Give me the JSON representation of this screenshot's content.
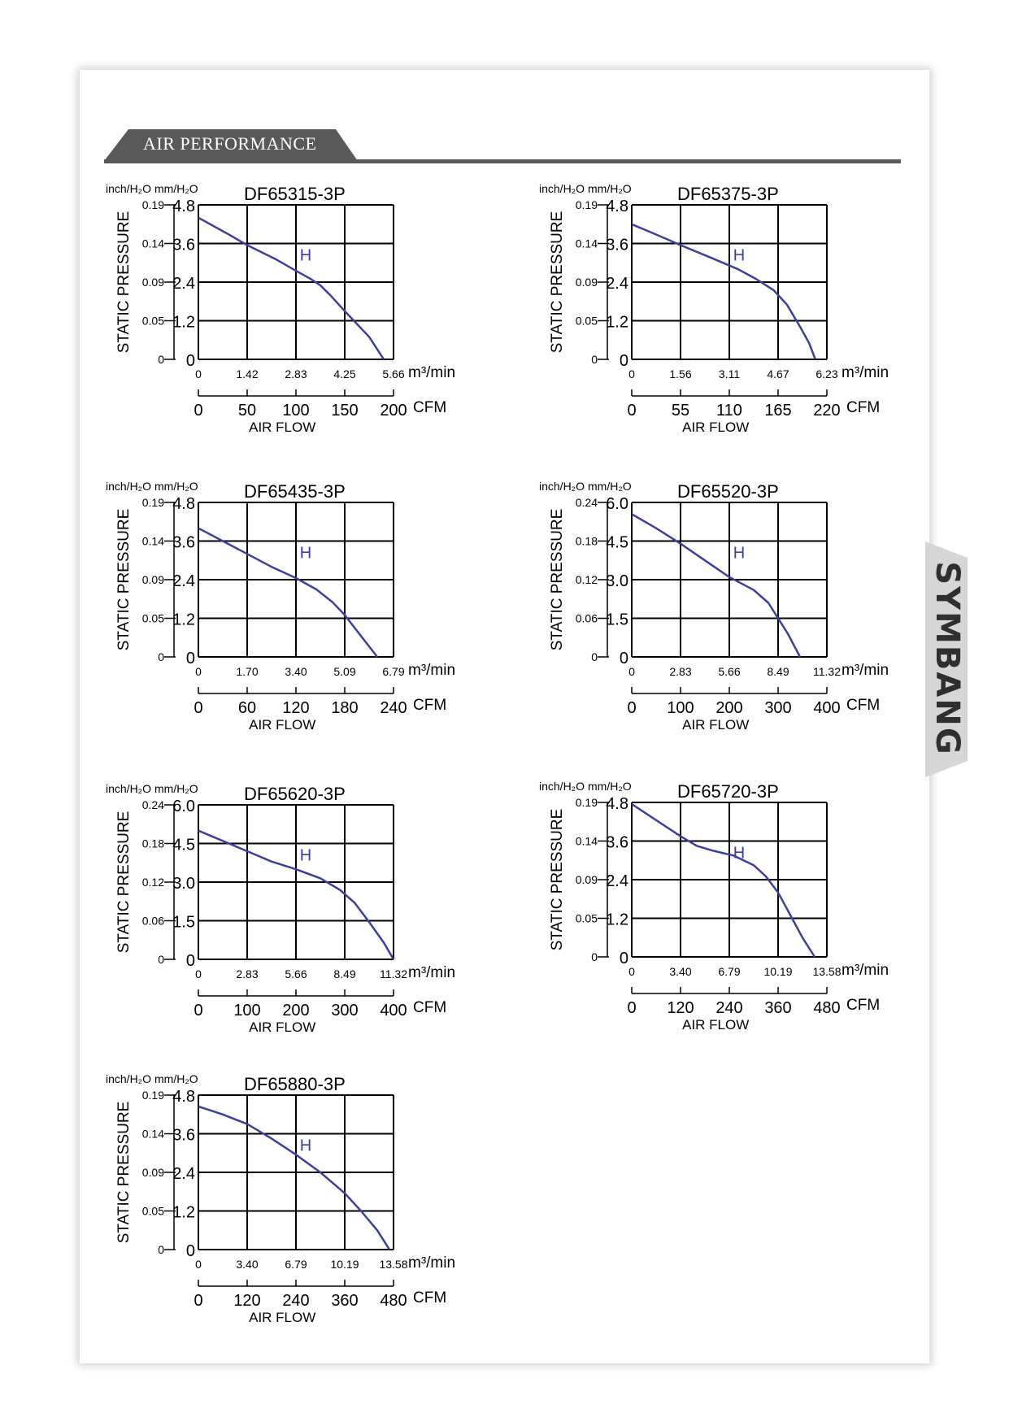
{
  "section": {
    "title": "AIR PERFORMANCE"
  },
  "brand": {
    "name": "SYMBANG"
  },
  "colors": {
    "curve": "#3b3fa0",
    "grid": "#000000",
    "header": "#595959"
  },
  "chart_data": [
    {
      "type": "line",
      "title": "DF65315-3P",
      "ylabel": "STATIC PRESSURE",
      "xlabel": "AIR FLOW",
      "unit_inch": "inch/H₂O",
      "unit_mm": "mm/H₂O",
      "unit_m3": "m³/min",
      "unit_cfm": "CFM",
      "y_mm_ticks": [
        "0",
        "1.2",
        "2.4",
        "3.6",
        "4.8"
      ],
      "y_inch_ticks": [
        "0",
        "0.05",
        "0.09",
        "0.14",
        "0.19"
      ],
      "x_m3_ticks": [
        "0",
        "1.42",
        "2.83",
        "4.25",
        "5.66"
      ],
      "x_cfm_ticks": [
        "0",
        "50",
        "100",
        "150",
        "200"
      ],
      "xlim": [
        0,
        200
      ],
      "ylim": [
        0,
        4.8
      ],
      "series": [
        {
          "name": "H",
          "x": [
            0,
            30,
            50,
            80,
            100,
            115,
            125,
            135,
            150,
            175,
            190
          ],
          "y": [
            4.4,
            3.9,
            3.55,
            3.1,
            2.75,
            2.5,
            2.3,
            2.0,
            1.5,
            0.7,
            0
          ]
        }
      ]
    },
    {
      "type": "line",
      "title": "DF65375-3P",
      "ylabel": "STATIC PRESSURE",
      "xlabel": "AIR FLOW",
      "unit_inch": "inch/H₂O",
      "unit_mm": "mm/H₂O",
      "unit_m3": "m³/min",
      "unit_cfm": "CFM",
      "y_mm_ticks": [
        "0",
        "1.2",
        "2.4",
        "3.6",
        "4.8"
      ],
      "y_inch_ticks": [
        "0",
        "0.05",
        "0.09",
        "0.14",
        "0.19"
      ],
      "x_m3_ticks": [
        "0",
        "1.56",
        "3.11",
        "4.67",
        "6.23"
      ],
      "x_cfm_ticks": [
        "0",
        "55",
        "110",
        "165",
        "220"
      ],
      "xlim": [
        0,
        220
      ],
      "ylim": [
        0,
        4.8
      ],
      "series": [
        {
          "name": "H",
          "x": [
            0,
            30,
            55,
            90,
            120,
            140,
            160,
            175,
            190,
            200,
            207
          ],
          "y": [
            4.2,
            3.85,
            3.55,
            3.15,
            2.8,
            2.5,
            2.15,
            1.7,
            1.0,
            0.5,
            0
          ]
        }
      ]
    },
    {
      "type": "line",
      "title": "DF65435-3P",
      "ylabel": "STATIC PRESSURE",
      "xlabel": "AIR FLOW",
      "unit_inch": "inch/H₂O",
      "unit_mm": "mm/H₂O",
      "unit_m3": "m³/min",
      "unit_cfm": "CFM",
      "y_mm_ticks": [
        "0",
        "1.2",
        "2.4",
        "3.6",
        "4.8"
      ],
      "y_inch_ticks": [
        "0",
        "0.05",
        "0.09",
        "0.14",
        "0.19"
      ],
      "x_m3_ticks": [
        "0",
        "1.70",
        "3.40",
        "5.09",
        "6.79"
      ],
      "x_cfm_ticks": [
        "0",
        "60",
        "120",
        "180",
        "240"
      ],
      "xlim": [
        0,
        240
      ],
      "ylim": [
        0,
        4.8
      ],
      "series": [
        {
          "name": "H",
          "x": [
            0,
            30,
            60,
            90,
            120,
            145,
            165,
            180,
            200,
            220
          ],
          "y": [
            4.0,
            3.6,
            3.2,
            2.8,
            2.45,
            2.1,
            1.7,
            1.3,
            0.65,
            0
          ]
        }
      ]
    },
    {
      "type": "line",
      "title": "DF65520-3P",
      "ylabel": "STATIC PRESSURE",
      "xlabel": "AIR FLOW",
      "unit_inch": "inch/H₂O",
      "unit_mm": "mm/H₂O",
      "unit_m3": "m³/min",
      "unit_cfm": "CFM",
      "y_mm_ticks": [
        "0",
        "1.5",
        "3.0",
        "4.5",
        "6.0"
      ],
      "y_inch_ticks": [
        "0",
        "0.06",
        "0.12",
        "0.18",
        "0.24"
      ],
      "x_m3_ticks": [
        "0",
        "2.83",
        "5.66",
        "8.49",
        "11.32"
      ],
      "x_cfm_ticks": [
        "0",
        "100",
        "200",
        "300",
        "400"
      ],
      "xlim": [
        0,
        400
      ],
      "ylim": [
        0,
        6.0
      ],
      "series": [
        {
          "name": "H",
          "x": [
            0,
            50,
            100,
            150,
            200,
            250,
            280,
            300,
            320,
            345
          ],
          "y": [
            5.55,
            5.0,
            4.4,
            3.75,
            3.1,
            2.6,
            2.1,
            1.5,
            0.9,
            0
          ]
        }
      ]
    },
    {
      "type": "line",
      "title": "DF65620-3P",
      "ylabel": "STATIC PRESSURE",
      "xlabel": "AIR FLOW",
      "unit_inch": "inch/H₂O",
      "unit_mm": "mm/H₂O",
      "unit_m3": "m³/min",
      "unit_cfm": "CFM",
      "y_mm_ticks": [
        "0",
        "1.5",
        "3.0",
        "4.5",
        "6.0"
      ],
      "y_inch_ticks": [
        "0",
        "0.06",
        "0.12",
        "0.18",
        "0.24"
      ],
      "x_m3_ticks": [
        "0",
        "2.83",
        "5.66",
        "8.49",
        "11.32"
      ],
      "x_cfm_ticks": [
        "0",
        "100",
        "200",
        "300",
        "400"
      ],
      "xlim": [
        0,
        400
      ],
      "ylim": [
        0,
        6.0
      ],
      "series": [
        {
          "name": "H",
          "x": [
            0,
            50,
            100,
            150,
            200,
            250,
            290,
            320,
            350,
            380,
            400
          ],
          "y": [
            5.0,
            4.6,
            4.2,
            3.8,
            3.5,
            3.15,
            2.7,
            2.2,
            1.45,
            0.65,
            0
          ]
        }
      ]
    },
    {
      "type": "line",
      "title": "DF65720-3P",
      "ylabel": "STATIC PRESSURE",
      "xlabel": "AIR FLOW",
      "unit_inch": "inch/H₂O",
      "unit_mm": "mm/H₂O",
      "unit_m3": "m³/min",
      "unit_cfm": "CFM",
      "y_mm_ticks": [
        "0",
        "1.2",
        "2.4",
        "3.6",
        "4.8"
      ],
      "y_inch_ticks": [
        "0",
        "0.05",
        "0.09",
        "0.14",
        "0.19"
      ],
      "x_m3_ticks": [
        "0",
        "3.40",
        "6.79",
        "10.19",
        "13.58"
      ],
      "x_cfm_ticks": [
        "0",
        "120",
        "240",
        "360",
        "480"
      ],
      "xlim": [
        0,
        480
      ],
      "ylim": [
        0,
        4.8
      ],
      "series": [
        {
          "name": "H",
          "x": [
            0,
            60,
            120,
            160,
            200,
            250,
            300,
            330,
            360,
            390,
            420,
            450
          ],
          "y": [
            4.75,
            4.25,
            3.75,
            3.45,
            3.3,
            3.15,
            2.85,
            2.5,
            2.0,
            1.3,
            0.6,
            0
          ]
        }
      ]
    },
    {
      "type": "line",
      "title": "DF65880-3P",
      "ylabel": "STATIC PRESSURE",
      "xlabel": "AIR FLOW",
      "unit_inch": "inch/H₂O",
      "unit_mm": "mm/H₂O",
      "unit_m3": "m³/min",
      "unit_cfm": "CFM",
      "y_mm_ticks": [
        "0",
        "1.2",
        "2.4",
        "3.6",
        "4.8"
      ],
      "y_inch_ticks": [
        "0",
        "0.05",
        "0.09",
        "0.14",
        "0.19"
      ],
      "x_m3_ticks": [
        "0",
        "3.40",
        "6.79",
        "10.19",
        "13.58"
      ],
      "x_cfm_ticks": [
        "0",
        "120",
        "240",
        "360",
        "480"
      ],
      "xlim": [
        0,
        480
      ],
      "ylim": [
        0,
        4.8
      ],
      "series": [
        {
          "name": "H",
          "x": [
            0,
            60,
            120,
            180,
            240,
            300,
            360,
            400,
            440,
            470
          ],
          "y": [
            4.45,
            4.2,
            3.9,
            3.45,
            2.95,
            2.4,
            1.75,
            1.2,
            0.6,
            0
          ]
        }
      ]
    }
  ]
}
